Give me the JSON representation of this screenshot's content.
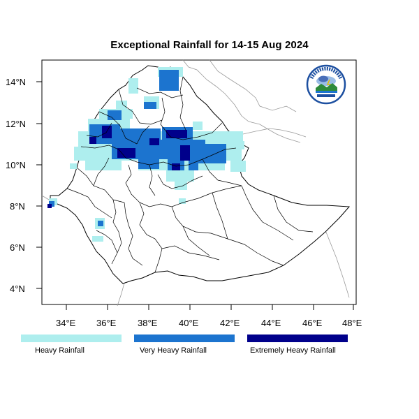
{
  "map": {
    "title": "Exceptional Rainfall for 14-15 Aug 2024",
    "lat_ticks": [
      "14°N",
      "12°N",
      "10°N",
      "8°N",
      "6°N",
      "4°N"
    ],
    "lon_ticks": [
      "34°E",
      "36°E",
      "38°E",
      "40°E",
      "42°E",
      "44°E",
      "46°E",
      "48°E"
    ],
    "logo": {
      "name": "ethiopian-meteorology-institute-logo",
      "text": "ETHIOPIAN METEOROLOGY INSTITUTE"
    }
  },
  "legend": [
    {
      "label": "Heavy Rainfall",
      "color": "#aeeeee"
    },
    {
      "label": "Very Heavy Rainfall",
      "color": "#1c74cf"
    },
    {
      "label": "Extremely Heavy Rainfall",
      "color": "#00008b"
    }
  ],
  "colors": {
    "heavy": "#aeeeee",
    "very_heavy": "#1c74cf",
    "extreme": "#00008b",
    "border": "#000000",
    "neighbor_border": "#9a9a9a"
  }
}
